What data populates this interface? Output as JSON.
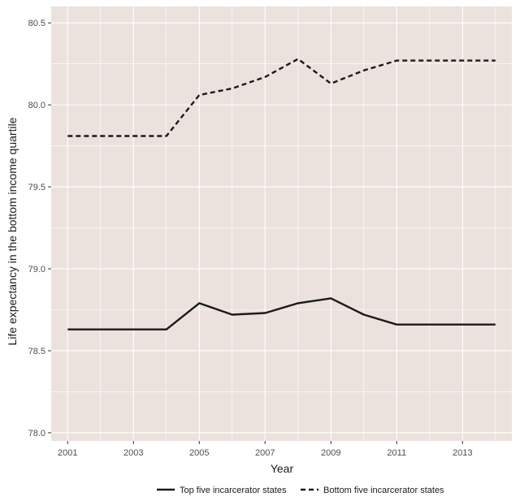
{
  "chart_data": {
    "type": "line",
    "xlabel": "Year",
    "ylabel": "Life expectancy in the bottom income quartile",
    "xlim": [
      2000.5,
      2014.5
    ],
    "ylim": [
      77.95,
      80.6
    ],
    "x_ticks": [
      2001,
      2003,
      2005,
      2007,
      2009,
      2011,
      2013
    ],
    "y_ticks": [
      78.0,
      78.5,
      79.0,
      79.5,
      80.0,
      80.5
    ],
    "x_tick_labels": [
      "2001",
      "2003",
      "2005",
      "2007",
      "2009",
      "2011",
      "2013"
    ],
    "y_tick_labels": [
      "78.0",
      "78.5",
      "79.0",
      "79.5",
      "80.0",
      "80.5"
    ],
    "grid": true,
    "panel_background": "#ebe2dd",
    "grid_color": "#ffffff",
    "legend_position": "bottom",
    "x": [
      2001,
      2002,
      2003,
      2004,
      2005,
      2006,
      2007,
      2008,
      2009,
      2010,
      2011,
      2012,
      2013,
      2014
    ],
    "series": [
      {
        "name": "Top five incarcerator states",
        "line_style": "solid",
        "color": "#1a1a1a",
        "values": [
          78.63,
          78.63,
          78.63,
          78.63,
          78.79,
          78.72,
          78.73,
          78.79,
          78.82,
          78.72,
          78.66,
          78.66,
          78.66,
          78.66
        ]
      },
      {
        "name": "Bottom five incarcerator states",
        "line_style": "dashed",
        "color": "#1a1a1a",
        "values": [
          79.81,
          79.81,
          79.81,
          79.81,
          80.06,
          80.1,
          80.17,
          80.28,
          80.13,
          80.21,
          80.27,
          80.27,
          80.27,
          80.27
        ]
      }
    ]
  }
}
